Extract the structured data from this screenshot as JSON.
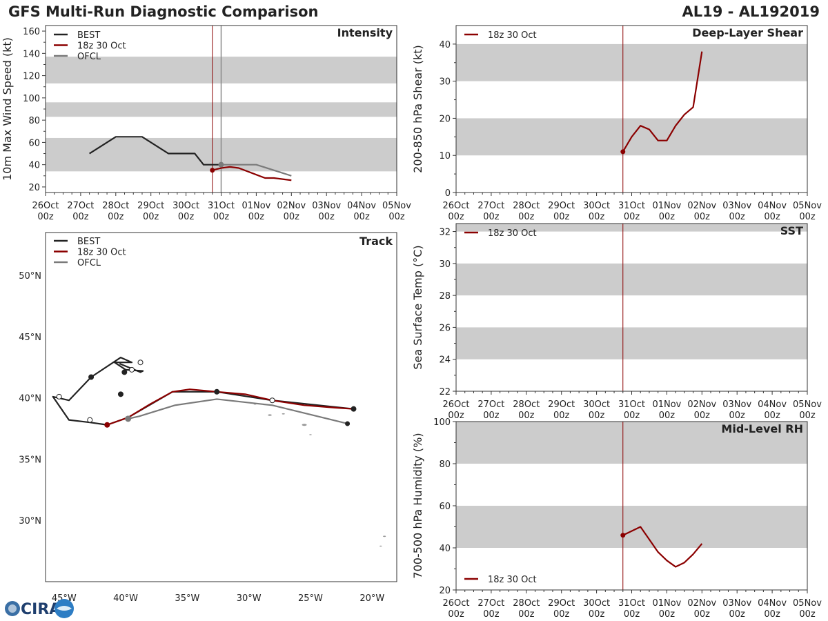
{
  "header": {
    "title_left": "GFS Multi-Run Diagnostic Comparison",
    "title_right": "AL19 - AL192019"
  },
  "colors": {
    "best": "#222222",
    "run": "#8b0000",
    "ofcl": "#7a7a7a",
    "band": "#cccccc",
    "vline_run": "#8b0000",
    "vline_ofcl": "#888888"
  },
  "time_axis": {
    "ticks": [
      "26Oct 00z",
      "27Oct 00z",
      "28Oct 00z",
      "29Oct 00z",
      "30Oct 00z",
      "31Oct 00z",
      "01Nov 00z",
      "02Nov 00z",
      "03Nov 00z",
      "04Nov 00z",
      "05Nov 00z"
    ],
    "tick_lines": [
      [
        "26Oct",
        "00z"
      ],
      [
        "27Oct",
        "00z"
      ],
      [
        "28Oct",
        "00z"
      ],
      [
        "29Oct",
        "00z"
      ],
      [
        "30Oct",
        "00z"
      ],
      [
        "31Oct",
        "00z"
      ],
      [
        "01Nov",
        "00z"
      ],
      [
        "02Nov",
        "00z"
      ],
      [
        "03Nov",
        "00z"
      ],
      [
        "04Nov",
        "00z"
      ],
      [
        "05Nov",
        "00z"
      ]
    ],
    "init_day": 4.75,
    "ofcl_day": 5.0
  },
  "chart_data": [
    {
      "id": "intensity",
      "type": "line",
      "title": "Intensity",
      "ylabel": "10m Max Wind Speed (kt)",
      "xlim": [
        0,
        10
      ],
      "ylim": [
        15,
        165
      ],
      "yticks": [
        20,
        40,
        60,
        80,
        100,
        120,
        140,
        160
      ],
      "bands": [
        [
          34,
          64
        ],
        [
          83,
          96
        ],
        [
          113,
          137
        ]
      ],
      "legend": [
        "BEST",
        "18z 30 Oct",
        "OFCL"
      ],
      "series": [
        {
          "name": "BEST",
          "color": "best",
          "x": [
            1.25,
            2.0,
            2.75,
            3.5,
            4.25,
            4.5,
            4.75,
            5.0
          ],
          "y": [
            50,
            65,
            65,
            50,
            50,
            40,
            40,
            40
          ]
        },
        {
          "name": "18z 30 Oct",
          "color": "run",
          "x": [
            4.75,
            5.0,
            5.25,
            5.5,
            6.0,
            6.25,
            6.5,
            7.0
          ],
          "y": [
            35,
            37,
            38,
            37,
            31,
            28,
            28,
            26
          ]
        },
        {
          "name": "OFCL",
          "color": "ofcl",
          "x": [
            5.0,
            6.0,
            7.0
          ],
          "y": [
            40,
            40,
            30
          ]
        }
      ]
    },
    {
      "id": "shear",
      "type": "line",
      "title": "Deep-Layer Shear",
      "ylabel": "200-850 hPa Shear (kt)",
      "xlim": [
        0,
        10
      ],
      "ylim": [
        0,
        45
      ],
      "yticks": [
        0,
        10,
        20,
        30,
        40
      ],
      "bands": [
        [
          10,
          20
        ],
        [
          30,
          40
        ]
      ],
      "legend": [
        "18z 30 Oct"
      ],
      "series": [
        {
          "name": "18z 30 Oct",
          "color": "run",
          "x": [
            4.75,
            5.0,
            5.25,
            5.5,
            5.75,
            6.0,
            6.25,
            6.5,
            6.75,
            7.0
          ],
          "y": [
            11,
            15,
            18,
            17,
            14,
            14,
            18,
            21,
            23,
            38
          ]
        }
      ]
    },
    {
      "id": "sst",
      "type": "line",
      "title": "SST",
      "ylabel": "Sea Surface Temp (°C)",
      "xlim": [
        0,
        10
      ],
      "ylim": [
        22,
        32.5
      ],
      "yticks": [
        22,
        24,
        26,
        28,
        30,
        32
      ],
      "bands": [
        [
          24,
          26
        ],
        [
          28,
          30
        ],
        [
          32,
          32.5
        ]
      ],
      "legend": [
        "18z 30 Oct"
      ],
      "series": []
    },
    {
      "id": "rh",
      "type": "line",
      "title": "Mid-Level RH",
      "ylabel": "700-500 hPa Humidity (%)",
      "xlim": [
        0,
        10
      ],
      "ylim": [
        20,
        100
      ],
      "yticks": [
        20,
        40,
        60,
        80,
        100
      ],
      "bands": [
        [
          40,
          60
        ],
        [
          80,
          100
        ]
      ],
      "legend": [
        "18z 30 Oct"
      ],
      "series": [
        {
          "name": "18z 30 Oct",
          "color": "run",
          "x": [
            4.75,
            5.0,
            5.25,
            5.5,
            5.75,
            6.0,
            6.25,
            6.5,
            6.75,
            7.0
          ],
          "y": [
            46,
            48,
            50,
            44,
            38,
            34,
            31,
            33,
            37,
            42
          ]
        }
      ]
    },
    {
      "id": "track",
      "type": "map",
      "title": "Track",
      "xlim": [
        -46.5,
        -18
      ],
      "ylim": [
        25,
        53.5
      ],
      "xticks": [
        -45,
        -40,
        -35,
        -30,
        -25,
        -20
      ],
      "xtick_labels": [
        "45°W",
        "40°W",
        "35°W",
        "30°W",
        "25°W",
        "20°W"
      ],
      "yticks": [
        30,
        35,
        40,
        45,
        50
      ],
      "ytick_labels": [
        "30°N",
        "35°N",
        "40°N",
        "45°N",
        "50°N"
      ],
      "legend": [
        "BEST",
        "18z 30 Oct",
        "OFCL"
      ],
      "series": [
        {
          "name": "BEST",
          "color": "best",
          "lon": [
            -40.5,
            -38.8,
            -38.6,
            -40.0,
            -40.9,
            -39.5,
            -40.4,
            -42.8,
            -44.6,
            -45.9,
            -44.6,
            -42.9,
            -41.5,
            -39.8,
            -36.2,
            -32.6,
            -28.1,
            -21.5
          ],
          "lat": [
            42.8,
            42.1,
            42.2,
            42.3,
            42.9,
            42.9,
            43.3,
            41.7,
            39.8,
            40.1,
            38.2,
            38.0,
            37.8,
            38.4,
            40.5,
            40.5,
            39.8,
            39.1
          ],
          "filled": [
            0,
            1,
            1,
            0
          ],
          "dots": [
            [
              -39.5,
              42.3,
              0
            ],
            [
              -40.1,
              42.1,
              1
            ],
            [
              -38.8,
              42.9,
              0
            ],
            [
              -42.8,
              41.7,
              1
            ],
            [
              -40.4,
              40.3,
              1
            ],
            [
              -45.4,
              40.1,
              0
            ],
            [
              -42.9,
              38.2,
              0
            ],
            [
              -32.6,
              40.5,
              1
            ],
            [
              -28.1,
              39.8,
              0
            ],
            [
              -21.5,
              39.1,
              1
            ]
          ]
        },
        {
          "name": "18z 30 Oct",
          "color": "run",
          "lon": [
            -41.5,
            -39.8,
            -38.0,
            -36.2,
            -34.8,
            -32.6,
            -30.3,
            -28.1,
            -25.5,
            -23.0,
            -21.5
          ],
          "lat": [
            37.8,
            38.4,
            39.5,
            40.5,
            40.7,
            40.5,
            40.3,
            39.8,
            39.4,
            39.2,
            39.1
          ]
        },
        {
          "name": "OFCL",
          "color": "ofcl",
          "lon": [
            -39.8,
            -38.9,
            -36.0,
            -32.6,
            -28.1,
            -22.0
          ],
          "lat": [
            38.3,
            38.5,
            39.4,
            39.9,
            39.4,
            37.9
          ]
        }
      ]
    }
  ],
  "logo": {
    "text": "CIRA"
  }
}
